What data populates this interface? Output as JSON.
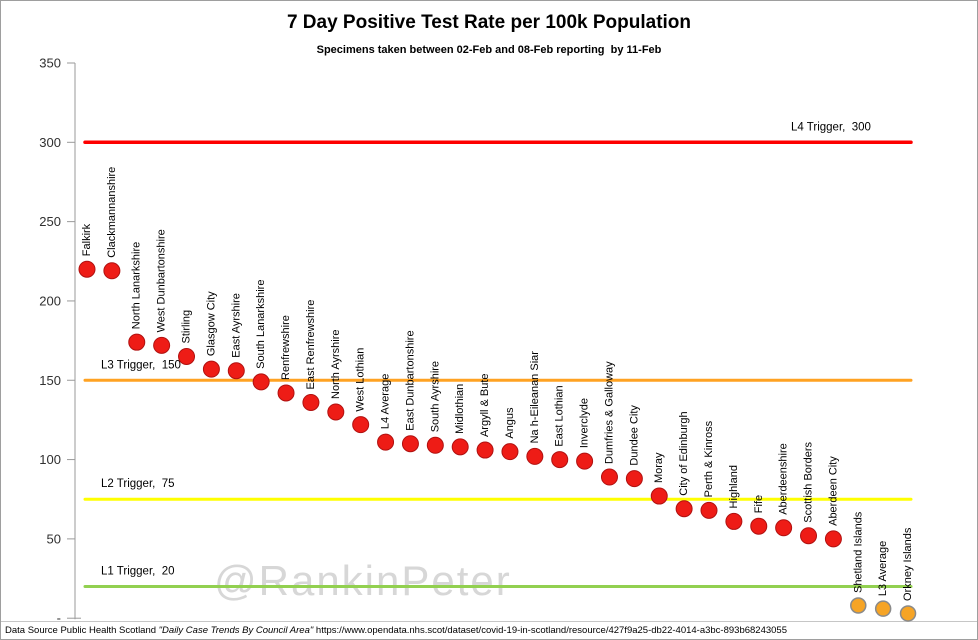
{
  "watermark": "@RankinPeter",
  "footer": {
    "prefix": "Data Source Public Health Scotland ",
    "source_title": "\"Daily Case Trends By Council Area\"",
    "url": " https://www.opendata.nhs.scot/dataset/covid-19-in-scotland/resource/427f9a25-db22-4014-a3bc-893b68243055"
  },
  "chart_data": {
    "type": "scatter",
    "title": "7 Day Positive Test Rate per 100k Population",
    "subtitle": "Specimens taken between 02-Feb and 08-Feb reporting  by 11-Feb",
    "xlabel": "",
    "ylabel": "",
    "ylim": [
      0,
      350
    ],
    "grid": false,
    "legend": false,
    "styles": {
      "red": {
        "fill": "#ee1c16",
        "stroke": "#b01110",
        "r": 8,
        "sw": 1
      },
      "orange": {
        "fill": "#f6a425",
        "stroke": "#8a8a8a",
        "r": 7.5,
        "sw": 1.5
      }
    },
    "yticks": [
      {
        "value": 0,
        "label": "-"
      },
      {
        "value": 50,
        "label": "50"
      },
      {
        "value": 100,
        "label": "100"
      },
      {
        "value": 150,
        "label": "150"
      },
      {
        "value": 200,
        "label": "200"
      },
      {
        "value": 250,
        "label": "250"
      },
      {
        "value": 300,
        "label": "300"
      },
      {
        "value": 350,
        "label": "350"
      }
    ],
    "trigger_lines": [
      {
        "id": "l4",
        "label": "L4 Trigger,  300",
        "value": 300,
        "color": "#fe0000",
        "width": 3.5,
        "label_side": "right"
      },
      {
        "id": "l3",
        "label": "L3 Trigger,  150",
        "value": 150,
        "color": "#ffa222",
        "width": 3,
        "label_side": "left"
      },
      {
        "id": "l2",
        "label": "L2 Trigger,  75",
        "value": 75,
        "color": "#ffff00",
        "width": 3,
        "label_side": "left"
      },
      {
        "id": "l1",
        "label": "L1 Trigger,  20",
        "value": 20,
        "color": "#92d050",
        "width": 3,
        "label_side": "left"
      }
    ],
    "points": [
      {
        "label": "Falkirk",
        "value": 220,
        "style": "red"
      },
      {
        "label": "Clackmannanshire",
        "value": 219,
        "style": "red"
      },
      {
        "label": "North Lanarkshire",
        "value": 174,
        "style": "red"
      },
      {
        "label": "West Dunbartonshire",
        "value": 172,
        "style": "red"
      },
      {
        "label": "Stirling",
        "value": 165,
        "style": "red"
      },
      {
        "label": "Glasgow City",
        "value": 157,
        "style": "red"
      },
      {
        "label": "East Ayrshire",
        "value": 156,
        "style": "red"
      },
      {
        "label": "South Lanarkshire",
        "value": 149,
        "style": "red"
      },
      {
        "label": "Renfrewshire",
        "value": 142,
        "style": "red"
      },
      {
        "label": "East Renfrewshire",
        "value": 136,
        "style": "red"
      },
      {
        "label": "North Ayrshire",
        "value": 130,
        "style": "red"
      },
      {
        "label": "West Lothian",
        "value": 122,
        "style": "red"
      },
      {
        "label": "L4 Average",
        "value": 111,
        "style": "red"
      },
      {
        "label": "East Dunbartonshire",
        "value": 110,
        "style": "red"
      },
      {
        "label": "South Ayrshire",
        "value": 109,
        "style": "red"
      },
      {
        "label": "Midlothian",
        "value": 108,
        "style": "red"
      },
      {
        "label": "Argyll & Bute",
        "value": 106,
        "style": "red"
      },
      {
        "label": "Angus",
        "value": 105,
        "style": "red"
      },
      {
        "label": "Na h-Eileanan Siar",
        "value": 102,
        "style": "red"
      },
      {
        "label": "East Lothian",
        "value": 100,
        "style": "red"
      },
      {
        "label": "Inverclyde",
        "value": 99,
        "style": "red"
      },
      {
        "label": "Dumfries & Galloway",
        "value": 89,
        "style": "red"
      },
      {
        "label": "Dundee City",
        "value": 88,
        "style": "red"
      },
      {
        "label": "Moray",
        "value": 77,
        "style": "red"
      },
      {
        "label": "City of Edinburgh",
        "value": 69,
        "style": "red"
      },
      {
        "label": "Perth & Kinross",
        "value": 68,
        "style": "red"
      },
      {
        "label": "Highland",
        "value": 61,
        "style": "red"
      },
      {
        "label": "Fife",
        "value": 58,
        "style": "red"
      },
      {
        "label": "Aberdeenshire",
        "value": 57,
        "style": "red"
      },
      {
        "label": "Scottish Borders",
        "value": 52,
        "style": "red"
      },
      {
        "label": "Aberdeen City",
        "value": 50,
        "style": "red"
      },
      {
        "label": "Shetland Islands",
        "value": 8,
        "style": "orange"
      },
      {
        "label": "L3 Average",
        "value": 6,
        "style": "orange"
      },
      {
        "label": "Orkney Islands",
        "value": 3,
        "style": "orange"
      }
    ]
  }
}
